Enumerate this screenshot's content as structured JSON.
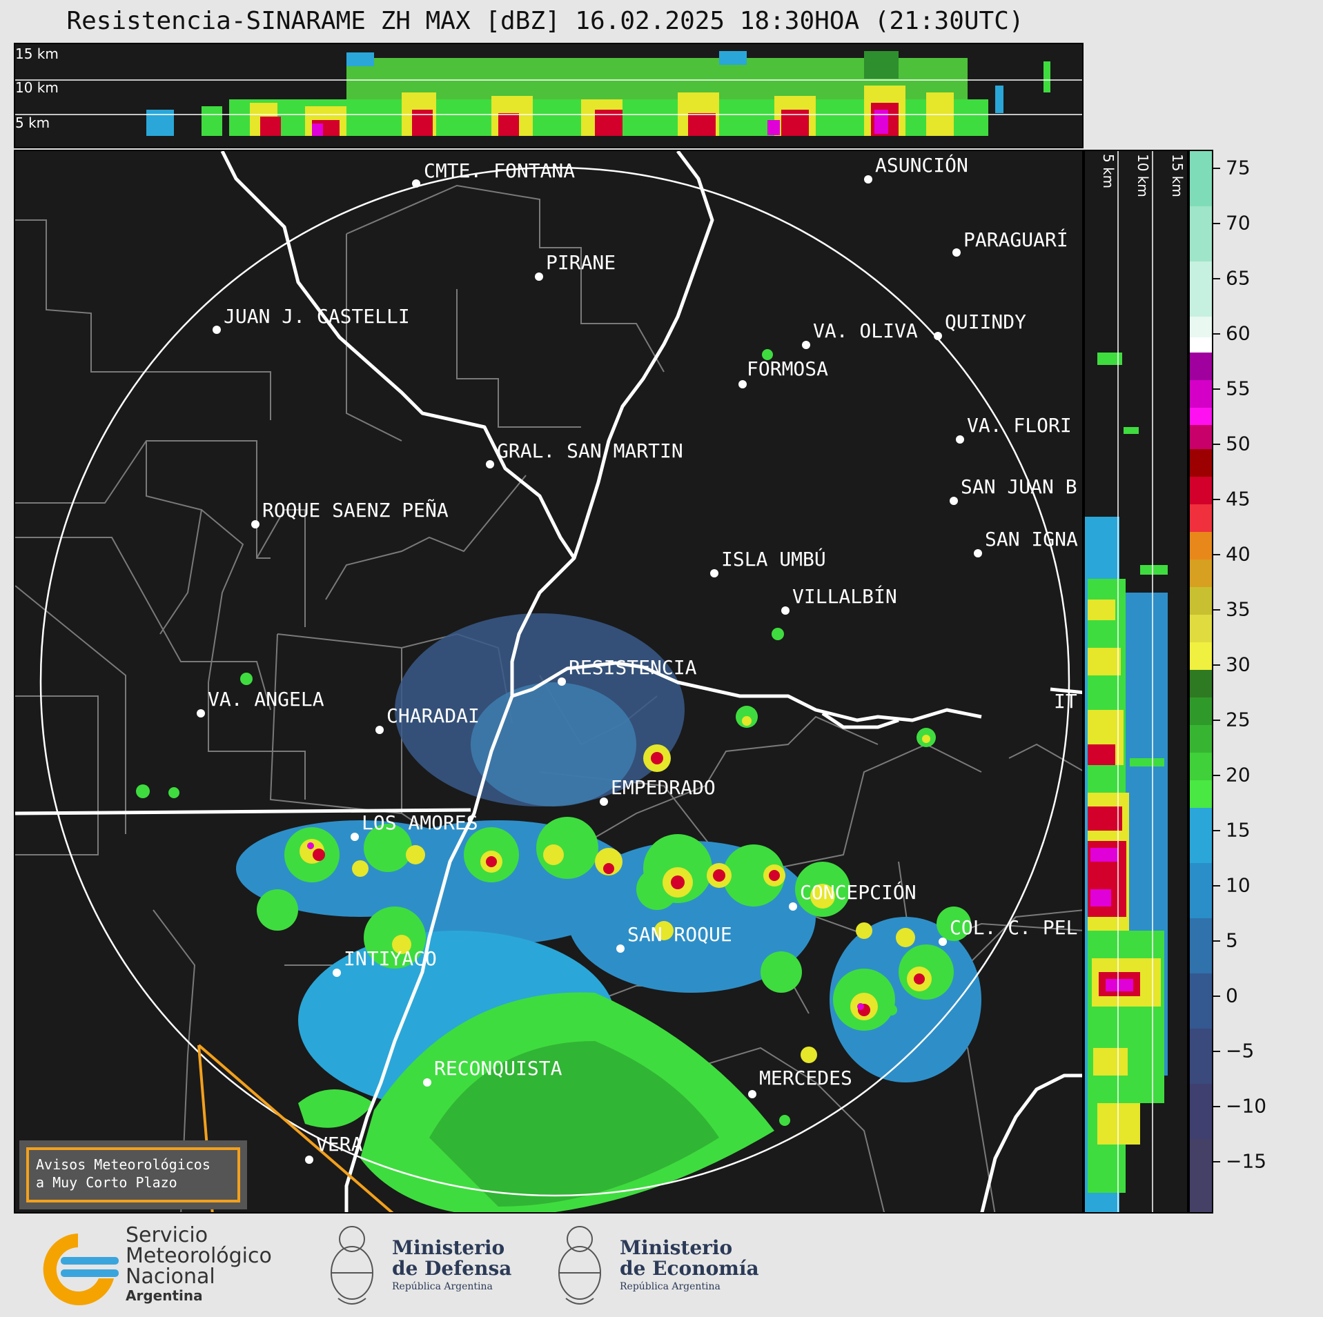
{
  "title": "Resistencia-SINARAME ZH MAX [dBZ] 16.02.2025 18:30HOA (21:30UTC)",
  "top_xsec": {
    "altitude_labels": [
      "15 km",
      "10 km",
      "5 km"
    ]
  },
  "right_xsec": {
    "altitude_labels": [
      "5 km",
      "10 km",
      "15 km"
    ]
  },
  "colorbar": {
    "unit": "dBZ",
    "ticks": [
      "75",
      "70",
      "65",
      "60",
      "55",
      "50",
      "45",
      "40",
      "35",
      "30",
      "25",
      "20",
      "15",
      "10",
      "5",
      "0",
      "−5",
      "−10",
      "−15"
    ]
  },
  "cities": [
    "CMTE. FONTANA",
    "ASUNCIÓN",
    "PARAGUARÍ",
    "PIRANE",
    "JUAN J. CASTELLI",
    "VA. OLIVA",
    "QUIINDY",
    "FORMOSA",
    "VA. FLORI",
    "GRAL. SAN MARTIN",
    "SAN JUAN B",
    "ROQUE SAENZ PEÑA",
    "SAN IGNA",
    "ISLA UMBÚ",
    "VILLALBÍN",
    "RESISTENCIA",
    "IT",
    "VA. ANGELA",
    "CHARADAI",
    "EMPEDRADO",
    "LOS AMORES",
    "CONCEPCIÓN",
    "COL. C. PEL",
    "SAN ROQUE",
    "INTIYACO",
    "RECONQUISTA",
    "MERCEDES",
    "VERA"
  ],
  "warning_box": {
    "line1": "Avisos Meteorológicos",
    "line2": "a Muy Corto Plazo"
  },
  "logos": {
    "smn": {
      "line1": "Servicio",
      "line2": "Meteorológico",
      "line3": "Nacional",
      "line4": "Argentina"
    },
    "defensa": {
      "line1": "Ministerio",
      "line2": "de Defensa",
      "line3": "República Argentina"
    },
    "economia": {
      "line1": "Ministerio",
      "line2": "de Economía",
      "line3": "República Argentina"
    }
  }
}
